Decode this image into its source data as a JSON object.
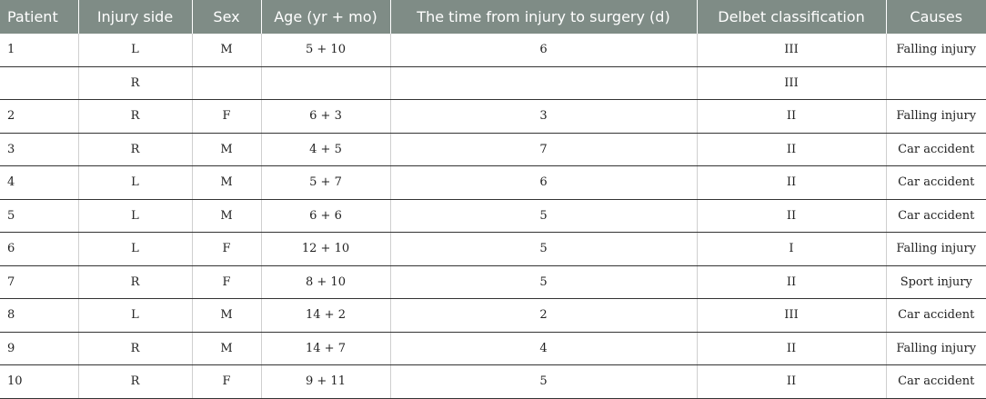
{
  "table": {
    "headers": [
      "Patient",
      "Injury side",
      "Sex",
      "Age (yr + mo)",
      "The time from injury to surgery (d)",
      "Delbet classification",
      "Causes"
    ],
    "rows": [
      [
        "1",
        "L",
        "M",
        "5 + 10",
        "6",
        "III",
        "Falling injury"
      ],
      [
        "",
        "R",
        "",
        "",
        "",
        "III",
        ""
      ],
      [
        "2",
        "R",
        "F",
        "6 + 3",
        "3",
        "II",
        "Falling injury"
      ],
      [
        "3",
        "R",
        "M",
        "4 + 5",
        "7",
        "II",
        "Car accident"
      ],
      [
        "4",
        "L",
        "M",
        "5 + 7",
        "6",
        "II",
        "Car accident"
      ],
      [
        "5",
        "L",
        "M",
        "6 + 6",
        "5",
        "II",
        "Car accident"
      ],
      [
        "6",
        "L",
        "F",
        "12 + 10",
        "5",
        "I",
        "Falling injury"
      ],
      [
        "7",
        "R",
        "F",
        "8 + 10",
        "5",
        "II",
        "Sport injury"
      ],
      [
        "8",
        "L",
        "M",
        "14 + 2",
        "2",
        "III",
        "Car accident"
      ],
      [
        "9",
        "R",
        "M",
        "14 + 7",
        "4",
        "II",
        "Falling injury"
      ],
      [
        "10",
        "R",
        "F",
        "9 + 11",
        "5",
        "II",
        "Car accident"
      ]
    ]
  }
}
